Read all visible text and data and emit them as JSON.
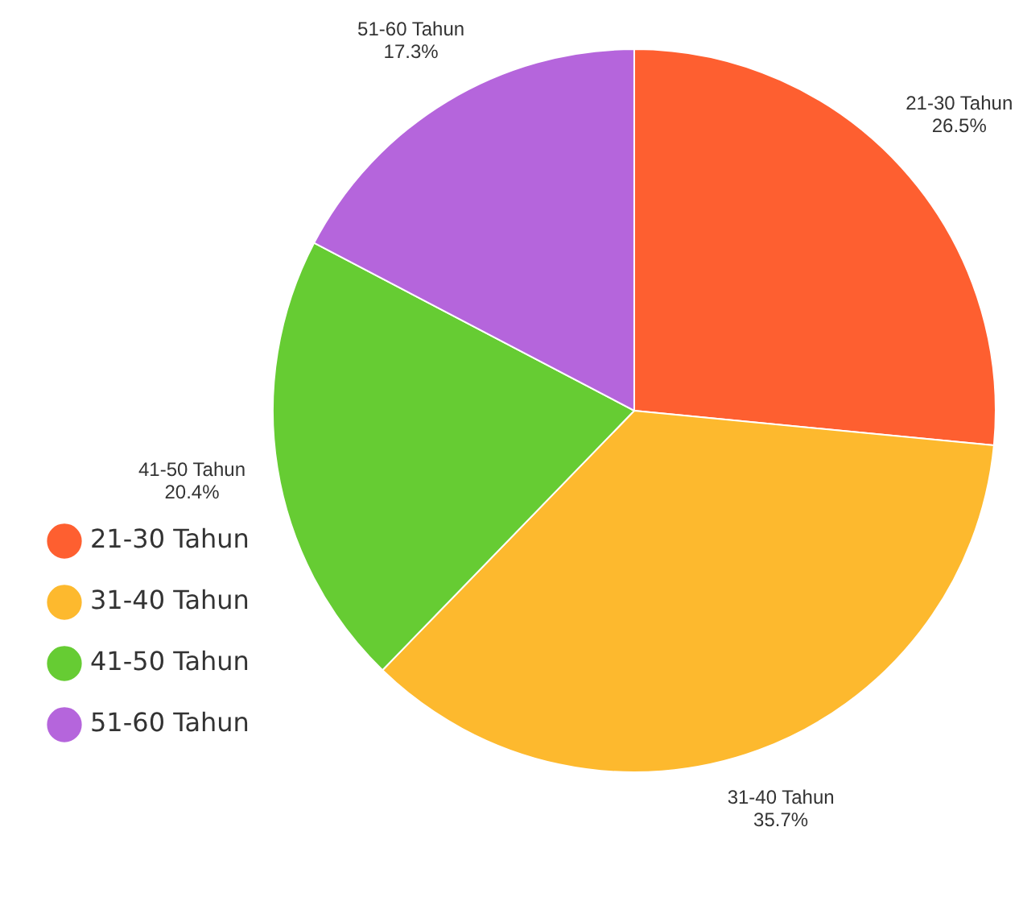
{
  "chart_data": {
    "type": "pie",
    "categories": [
      "21-30 Tahun",
      "31-40 Tahun",
      "41-50 Tahun",
      "51-60 Tahun"
    ],
    "values": [
      26.5,
      35.7,
      20.4,
      17.3
    ],
    "colors": [
      "#fe5f30",
      "#fdb92e",
      "#66cc33",
      "#b565dc"
    ],
    "value_labels": [
      "26.5%",
      "35.7%",
      "20.4%",
      "17.3%"
    ],
    "legend": "bottom left"
  }
}
